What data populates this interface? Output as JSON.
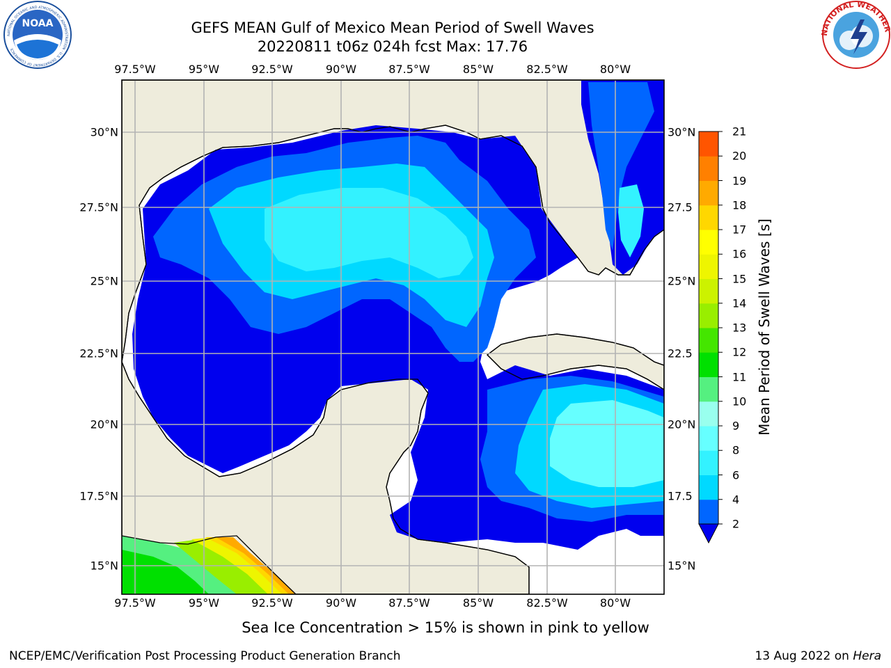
{
  "header": {
    "title": "GEFS MEAN Gulf of Mexico Mean Period of Swell Waves",
    "subtitle": "20220811 t06z 024h fcst   Max: 17.76"
  },
  "map": {
    "lon_labels": [
      "97.5°W",
      "95°W",
      "92.5°W",
      "90°W",
      "87.5°W",
      "85°W",
      "82.5°W",
      "80°W"
    ],
    "lat_labels_left": [
      "30°N",
      "27.5°N",
      "25°N",
      "22.5°N",
      "20°N",
      "17.5°N",
      "15°N"
    ],
    "lat_labels_right": [
      "30°N",
      "27.5",
      "25°N",
      "22.5",
      "20°N",
      "17.5",
      "15°N"
    ],
    "land_color": "#eeecdc",
    "ocean_color": "#ffffff",
    "grid_color": "#b3b3b3"
  },
  "colorbar": {
    "title": "Mean Period of Swell Waves [s]",
    "ticks": [
      "2",
      "4",
      "6",
      "8",
      "9",
      "10",
      "11",
      "12",
      "13",
      "14",
      "15",
      "16",
      "17",
      "18",
      "19",
      "20",
      "21"
    ],
    "colors": [
      "#0066ff",
      "#00d9ff",
      "#33f2ff",
      "#66ffff",
      "#99ffee",
      "#55f080",
      "#00e000",
      "#44e600",
      "#99ee00",
      "#ccf200",
      "#eef500",
      "#ffff00",
      "#ffd700",
      "#ffaa00",
      "#ff8000",
      "#ff5500",
      "#ff2a00",
      "#ff0000"
    ],
    "extend_color": "#0000ee"
  },
  "footer": {
    "caption": "Sea Ice Concentration > 15% is shown in pink to yellow",
    "left": "NCEP/EMC/Verification Post Processing Product Generation Branch",
    "right_date": "13 Aug 2022 on ",
    "right_host": "Hera"
  },
  "logos": {
    "noaa_text": "NOAA",
    "noaa_ring": "NATIONAL OCEANIC AND ATMOSPHERIC ADMINISTRATION · U.S. DEPARTMENT OF COMMERCE",
    "nws_ring": "NATIONAL WEATHER SERVICE"
  }
}
